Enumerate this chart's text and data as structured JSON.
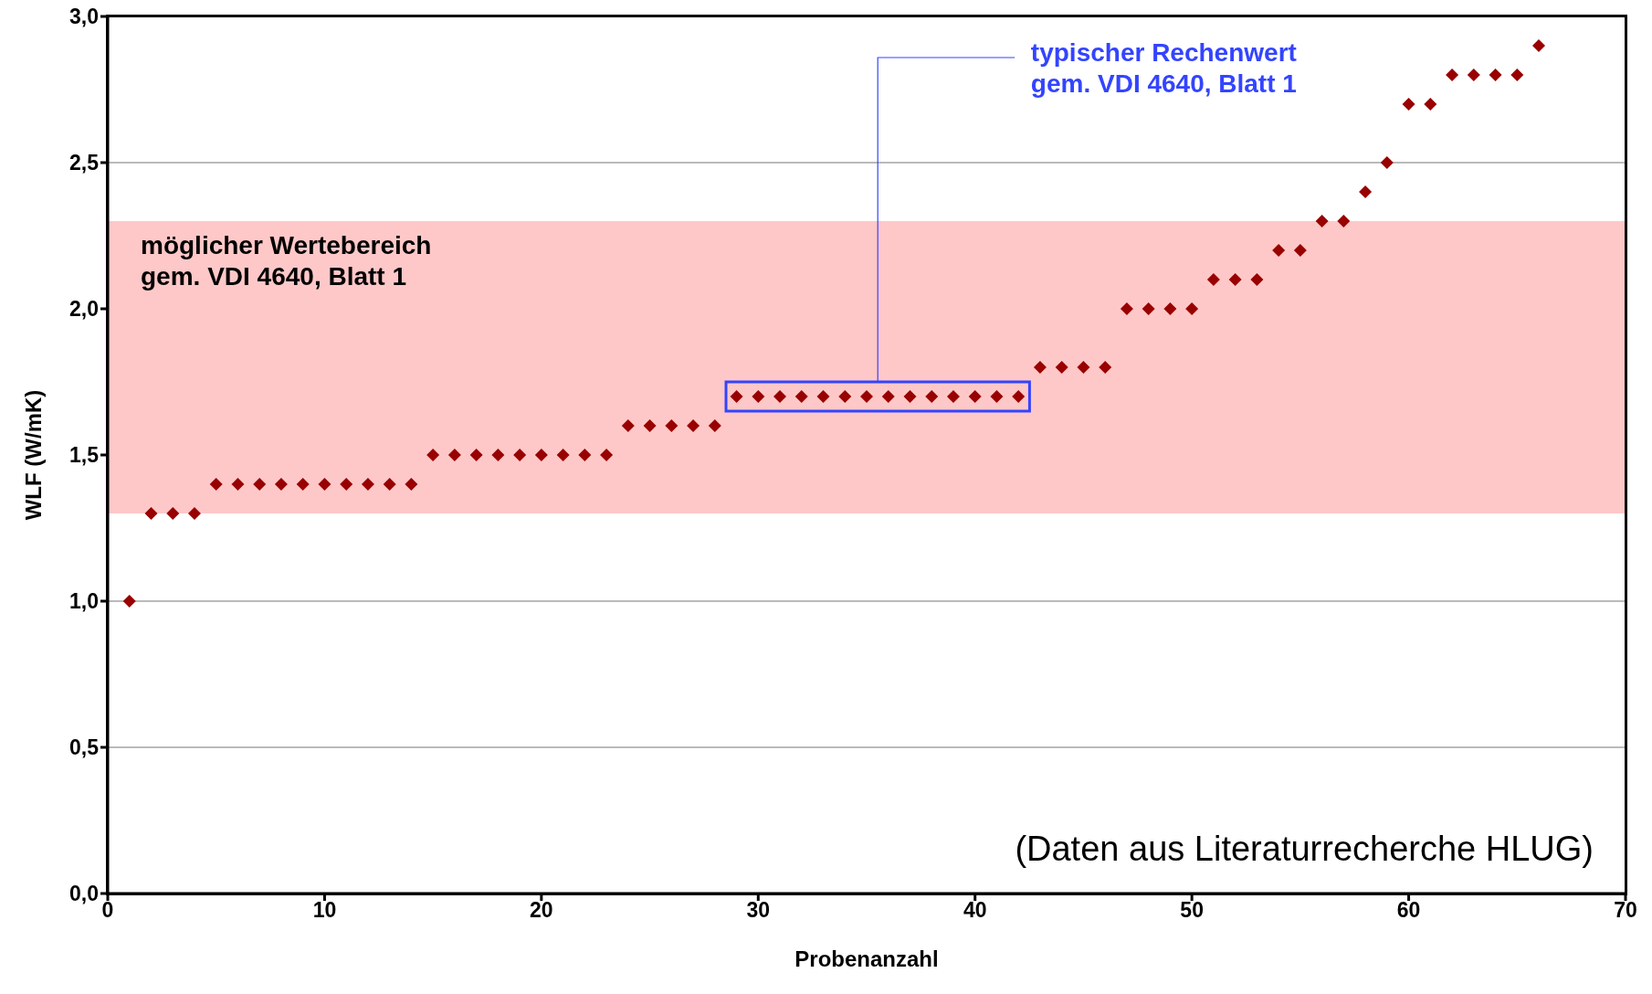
{
  "chart_data": {
    "type": "scatter",
    "xlabel": "Probenanzahl",
    "ylabel": "WLF (W/mK)",
    "x": [
      1,
      2,
      3,
      4,
      5,
      6,
      7,
      8,
      9,
      10,
      11,
      12,
      13,
      14,
      15,
      16,
      17,
      18,
      19,
      20,
      21,
      22,
      23,
      24,
      25,
      26,
      27,
      28,
      29,
      30,
      31,
      32,
      33,
      34,
      35,
      36,
      37,
      38,
      39,
      40,
      41,
      42,
      43,
      44,
      45,
      46,
      47,
      48,
      49,
      50,
      51,
      52,
      53,
      54,
      55,
      56,
      57,
      58,
      59,
      60,
      61,
      62,
      63,
      64,
      65,
      66
    ],
    "series": [
      {
        "color": "#990000",
        "values": [
          1.0,
          1.3,
          1.3,
          1.3,
          1.4,
          1.4,
          1.4,
          1.4,
          1.4,
          1.4,
          1.4,
          1.4,
          1.4,
          1.4,
          1.5,
          1.5,
          1.5,
          1.5,
          1.5,
          1.5,
          1.5,
          1.5,
          1.5,
          1.6,
          1.6,
          1.6,
          1.6,
          1.6,
          1.7,
          1.7,
          1.7,
          1.7,
          1.7,
          1.7,
          1.7,
          1.7,
          1.7,
          1.7,
          1.7,
          1.7,
          1.7,
          1.7,
          1.8,
          1.8,
          1.8,
          1.8,
          2.0,
          2.0,
          2.0,
          2.0,
          2.1,
          2.1,
          2.1,
          2.2,
          2.2,
          2.3,
          2.3,
          2.4,
          2.5,
          2.7,
          2.7,
          2.8,
          2.8,
          2.8,
          2.8,
          2.9
        ]
      }
    ],
    "xlim": [
      0,
      70
    ],
    "xticks": [
      0,
      10,
      20,
      30,
      40,
      50,
      60,
      70
    ],
    "ylim": [
      0,
      3
    ],
    "yticks": [
      {
        "value": 0,
        "label": "0,0"
      },
      {
        "value": 0.5,
        "label": "0,5"
      },
      {
        "value": 1,
        "label": "1,0"
      },
      {
        "value": 1.5,
        "label": "1,5"
      },
      {
        "value": 2,
        "label": "2,0"
      },
      {
        "value": 2.5,
        "label": "2,5"
      },
      {
        "value": 3,
        "label": "3,0"
      }
    ],
    "bands": [
      {
        "axis": "y",
        "from": 1.3,
        "to": 2.3,
        "label": "möglicher Wertebereich\ngem. VDI 4640, Blatt 1",
        "color": "#ffc8c8"
      }
    ],
    "annotations": [
      "typischer Rechenwert\ngem. VDI 4640, Blatt 1",
      "(Daten aus Literaturrecherche HLUG)"
    ],
    "grid": "y",
    "marker": "diamond"
  }
}
